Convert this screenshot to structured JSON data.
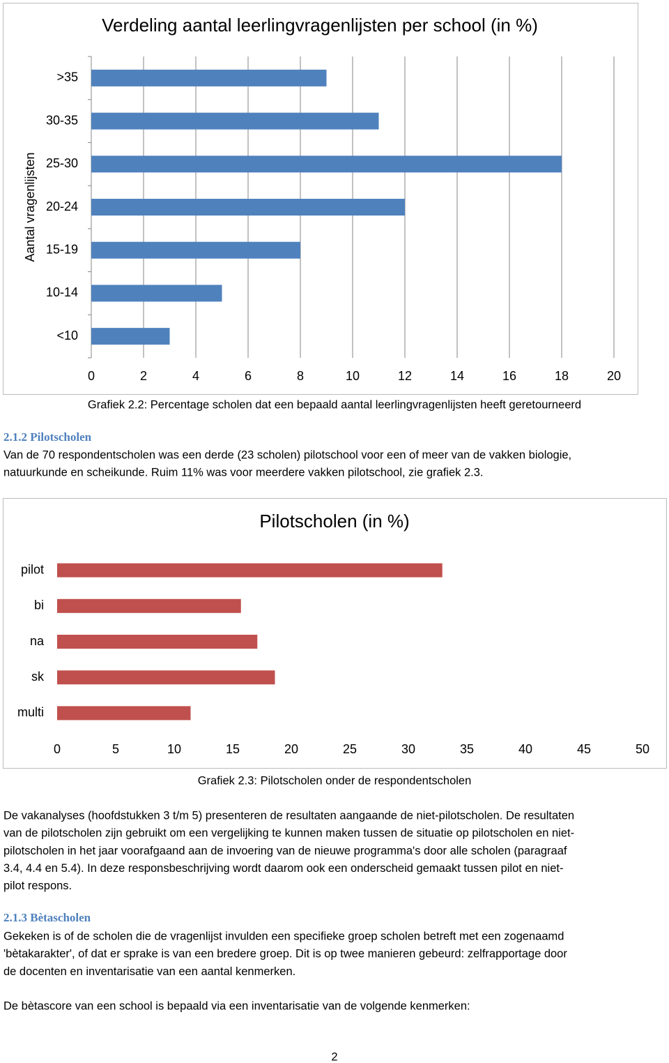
{
  "chart_data": [
    {
      "type": "hbar",
      "title": "Verdeling aantal leerlingvragenlijsten per school (in %)",
      "y_label": "Aantal vragenlijsten",
      "categories": [
        ">35",
        "30-35",
        "25-30",
        "20-24",
        "15-19",
        "10-14",
        "<10"
      ],
      "values": [
        9,
        11,
        18,
        12,
        8,
        5,
        3
      ],
      "color": "#4f81bd",
      "xlim": [
        0,
        20
      ],
      "xticks": [
        0,
        2,
        4,
        6,
        8,
        10,
        12,
        14,
        16,
        18,
        20
      ],
      "grid": true
    },
    {
      "type": "hbar",
      "title": "Pilotscholen (in %)",
      "categories": [
        "pilot",
        "bi",
        "na",
        "sk",
        "multi"
      ],
      "values": [
        32.9,
        15.7,
        17.1,
        18.6,
        11.4
      ],
      "color": "#c0504d",
      "xlim": [
        0,
        50
      ],
      "xticks": [
        0,
        5,
        10,
        15,
        20,
        25,
        30,
        35,
        40,
        45,
        50
      ],
      "grid": false
    }
  ],
  "document": {
    "caption_1": "Grafiek 2.2: Percentage scholen dat een bepaald aantal leerlingvragenlijsten heeft geretourneerd",
    "heading_1": "2.1.2 Pilotscholen",
    "paragraph_1": [
      "Van de 70 respondentscholen was een derde (23 scholen) pilotschool voor een of meer van de vakken biologie,",
      "natuurkunde en scheikunde. Ruim 11% was voor meerdere vakken pilotschool, zie grafiek 2.3."
    ],
    "caption_2": "Grafiek 2.3: Pilotscholen onder de respondentscholen",
    "paragraph_2": [
      "De vakanalyses (hoofdstukken 3 t/m 5) presenteren de resultaten aangaande de niet-pilotscholen. De resultaten",
      "van de pilotscholen zijn gebruikt om een vergelijking te kunnen maken tussen de situatie op pilotscholen en niet-",
      "pilotscholen in het jaar voorafgaand aan de invoering van de nieuwe programma's door alle scholen (paragraaf",
      "3.4, 4.4 en 5.4). In deze responsbeschrijving wordt daarom ook een onderscheid gemaakt tussen pilot en niet-",
      "pilot respons."
    ],
    "heading_2": "2.1.3 Bètascholen",
    "paragraph_3": [
      "Gekeken is of de scholen die de vragenlijst invulden een specifieke groep scholen betreft met een zogenaamd",
      "'bètakarakter', of dat er sprake is van een bredere groep. Dit is op twee manieren gebeurd: zelfrapportage door",
      "de docenten en inventarisatie van een aantal kenmerken."
    ],
    "paragraph_4": [
      "De bètascore van een school is bepaald via een inventarisatie van de volgende kenmerken:"
    ],
    "page_number": "2"
  }
}
